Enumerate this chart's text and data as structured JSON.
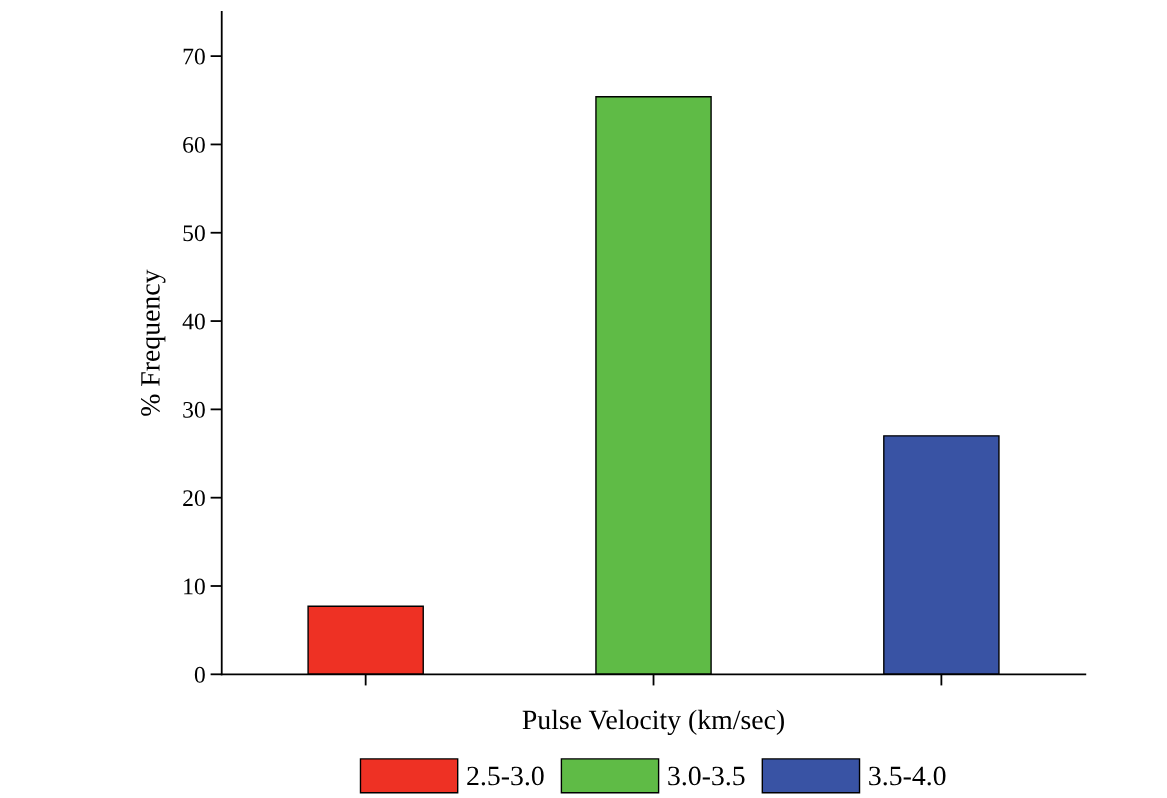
{
  "chart_data": {
    "type": "bar",
    "stacked": true,
    "xlabel": "Pulse Velocity (km/sec)",
    "ylabel": "% Frequency",
    "categories": [
      null,
      null,
      null
    ],
    "series": [
      {
        "name": "2.5-3.0",
        "color": "#ee3124",
        "values": [
          7.7,
          null,
          null
        ]
      },
      {
        "name": "3.0-3.5",
        "color": "#5fbb46",
        "values": [
          null,
          65.4,
          null
        ]
      },
      {
        "name": "3.5-4.0",
        "color": "#3953a4",
        "values": [
          null,
          null,
          27.0
        ]
      }
    ],
    "ylim": [
      0,
      75
    ],
    "yticks": [
      0,
      10,
      20,
      30,
      40,
      50,
      60,
      70
    ],
    "grid": false,
    "legend": "bottom"
  }
}
